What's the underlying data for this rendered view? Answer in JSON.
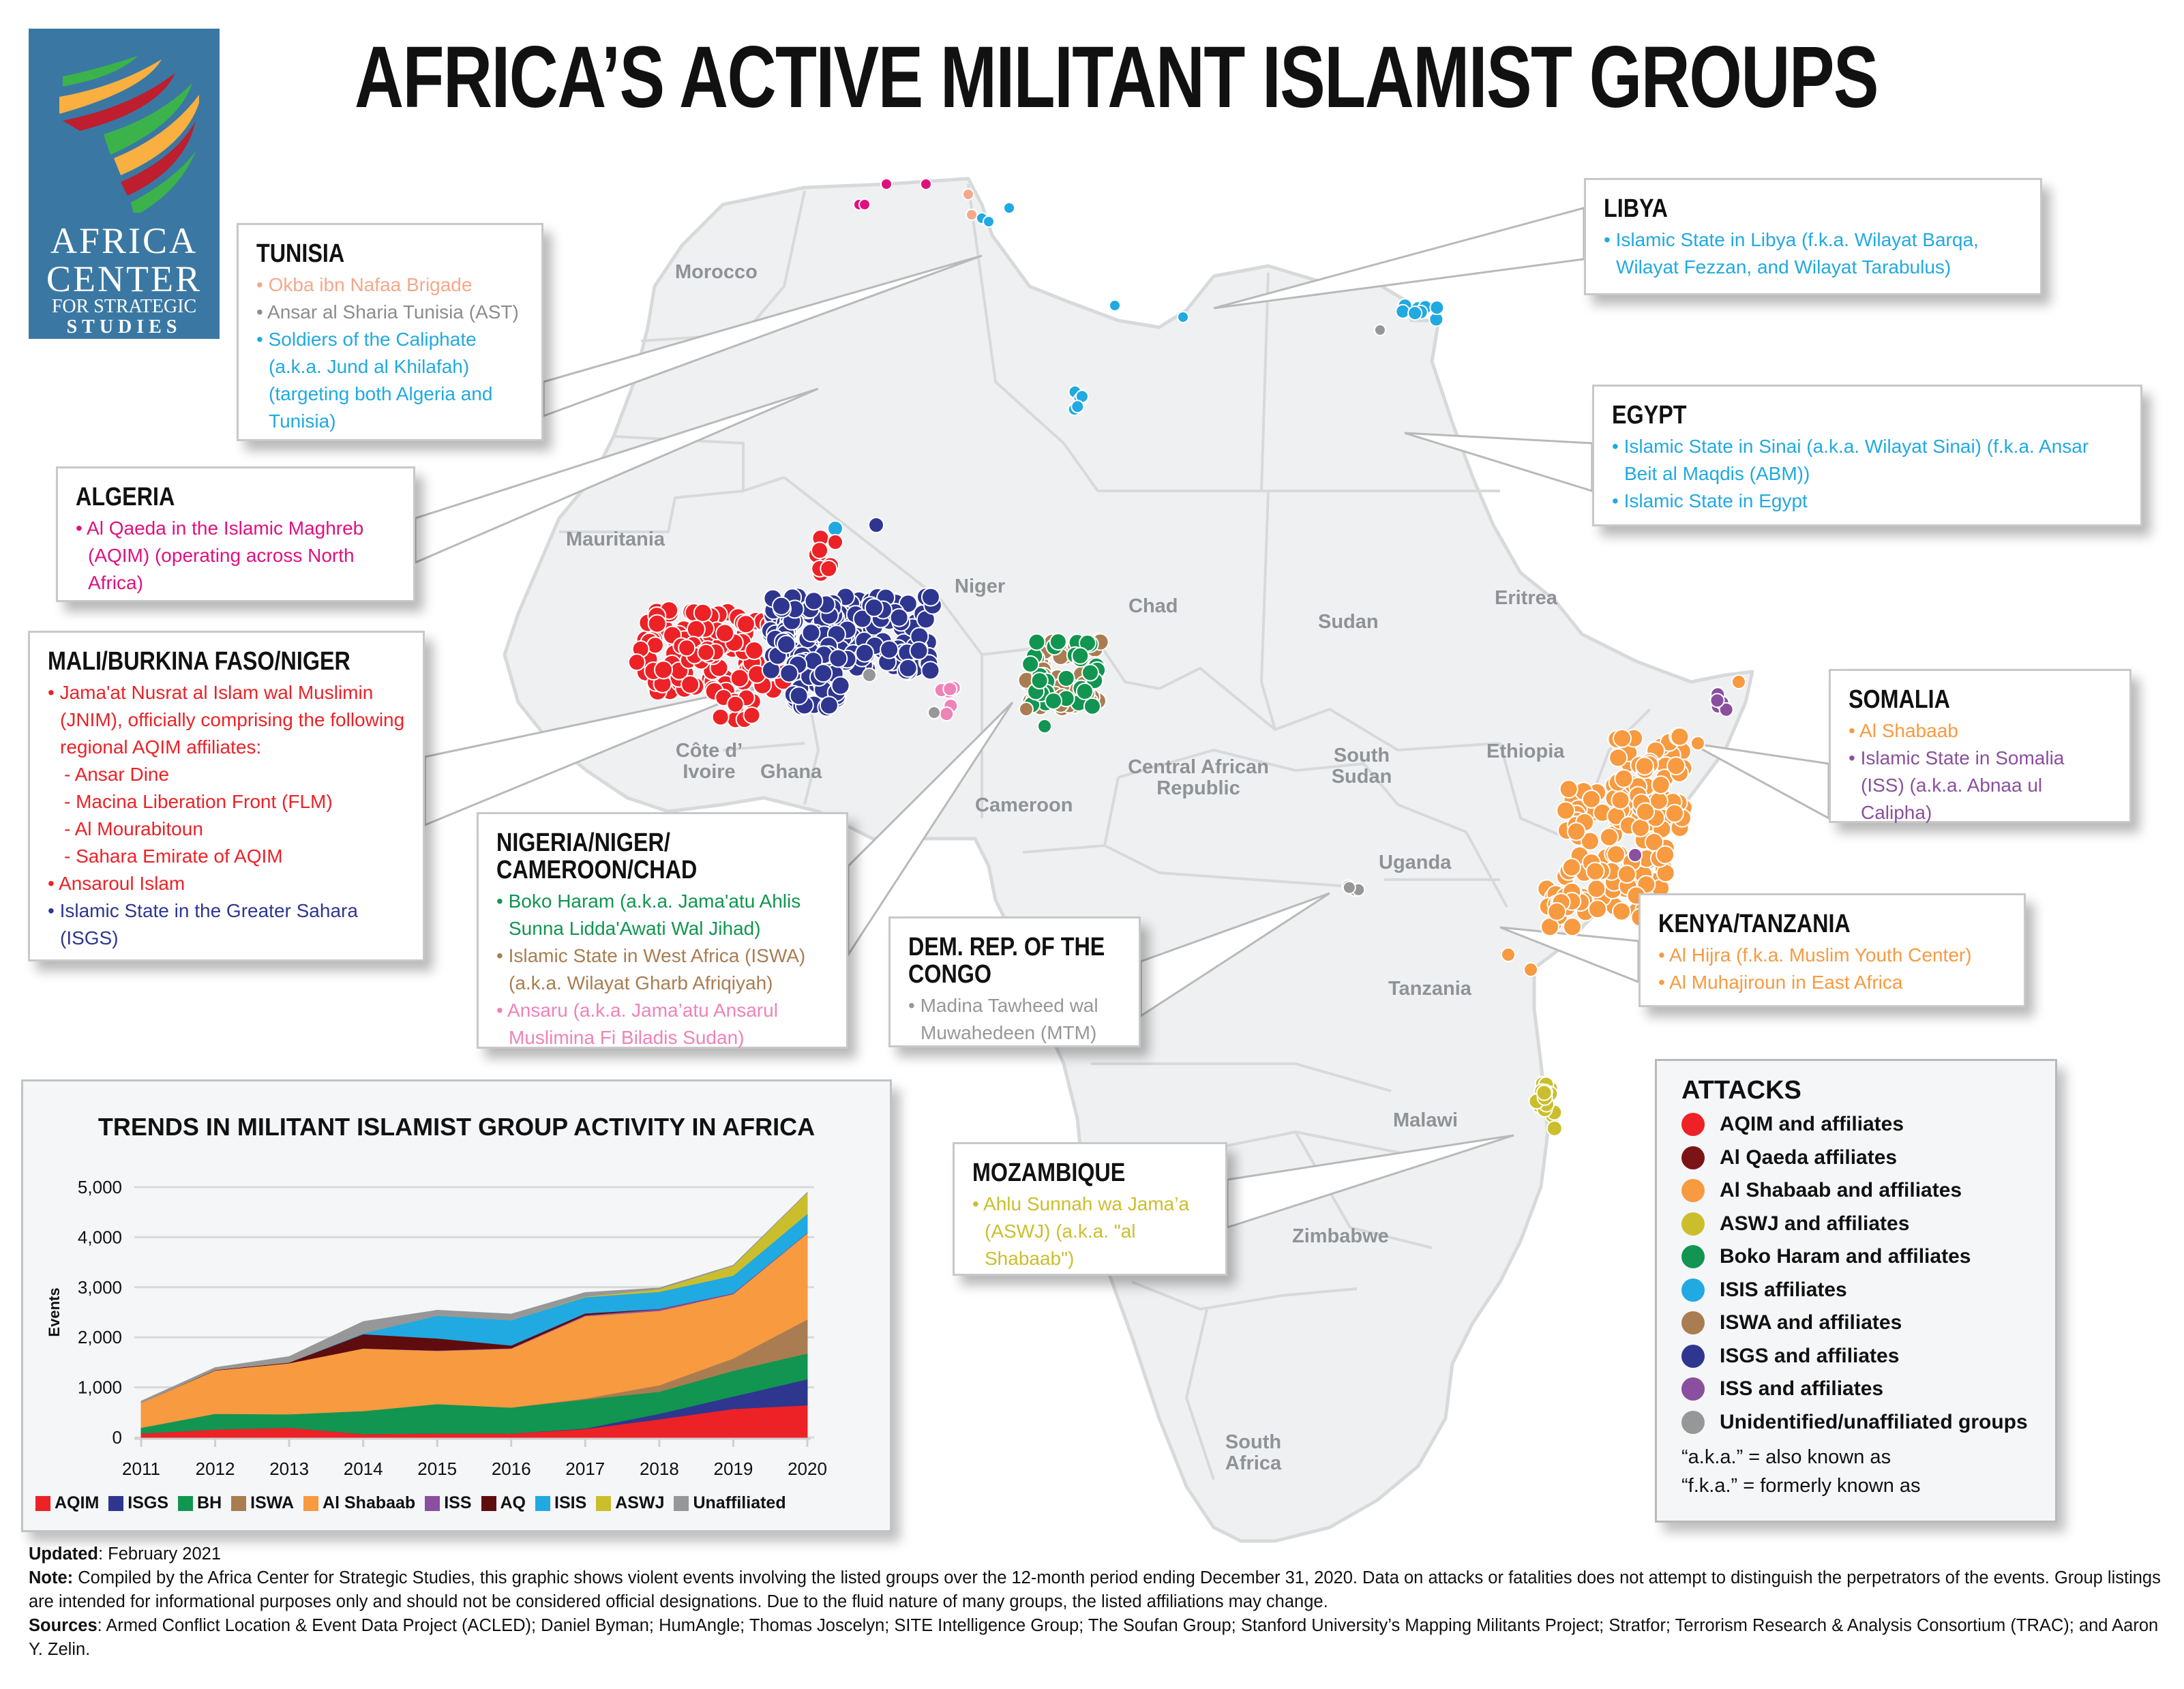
{
  "header": {
    "title": "AFRICA’S ACTIVE MILITANT ISLAMIST GROUPS",
    "logo": {
      "line1": "AFRICA",
      "line2": "CENTER",
      "line3": "FOR STRATEGIC",
      "line4": "STUDIES",
      "stripe_colors": [
        "#3bb34a",
        "#f9b040",
        "#be1e2d"
      ],
      "background": "#3a78a3"
    }
  },
  "colors": {
    "AQIM": "#ec2227",
    "AQ": "#6b1214",
    "AlShabaab": "#f79a40",
    "ASWJ": "#cbbe2d",
    "BH": "#119550",
    "ISIS": "#21a9e1",
    "ISWA": "#a97d51",
    "ISGS": "#2e3690",
    "ISS": "#8a4f9e",
    "Unaffiliated": "#979797",
    "OkbaBrigade": "#f5a88a",
    "AQIMAlgeria": "#e0107f",
    "Ansaru": "#ee83b8",
    "map_fill": "#eff0f1",
    "map_border": "#d8d9db"
  },
  "countries": [
    {
      "name": "Morocco"
    },
    {
      "name": "Mauritania"
    },
    {
      "name": "Niger"
    },
    {
      "name": "Chad"
    },
    {
      "name": "Sudan"
    },
    {
      "name": "Eritrea"
    },
    {
      "name": "Ethiopia"
    },
    {
      "name": "South Sudan"
    },
    {
      "name": "Central African Republic"
    },
    {
      "name": "Cameroon"
    },
    {
      "name": "Côte d’ Ivoire"
    },
    {
      "name": "Ghana"
    },
    {
      "name": "Uganda"
    },
    {
      "name": "Tanzania"
    },
    {
      "name": "Malawi"
    },
    {
      "name": "Zimbabwe"
    },
    {
      "name": "South Africa"
    }
  ],
  "callouts": {
    "tunisia": {
      "title": "TUNISIA",
      "items": [
        {
          "text": "Okba ibn Nafaa Brigade",
          "color": "#f5a88a"
        },
        {
          "text": "Ansar al Sharia Tunisia (AST)",
          "color": "#8c8c8c"
        },
        {
          "text": "Soldiers of the Caliphate (a.k.a. Jund al Khilafah) (targeting both Algeria and Tunisia)",
          "color": "#21a9e1"
        }
      ]
    },
    "libya": {
      "title": "LIBYA",
      "items": [
        {
          "text": "Islamic State in Libya (f.k.a. Wilayat Barqa, Wilayat Fezzan, and Wilayat Tarabulus)",
          "color": "#21a9e1"
        }
      ]
    },
    "egypt": {
      "title": "EGYPT",
      "items": [
        {
          "text": "Islamic State in Sinai (a.k.a. Wilayat Sinai) (f.k.a. Ansar Beit al Maqdis (ABM))",
          "color": "#21a9e1"
        },
        {
          "text": "Islamic State in Egypt",
          "color": "#21a9e1"
        }
      ]
    },
    "algeria": {
      "title": "ALGERIA",
      "items": [
        {
          "text": "Al Qaeda in the Islamic Maghreb (AQIM) (operating across North Africa)",
          "color": "#e0107f"
        }
      ]
    },
    "mali": {
      "title": "MALI/BURKINA FASO/NIGER",
      "items": [
        {
          "text": "Jama'at Nusrat al Islam wal Muslimin (JNIM), officially comprising the following regional AQIM affiliates:",
          "color": "#ec2227",
          "sub": false
        },
        {
          "text": "Ansar Dine",
          "color": "#ec2227",
          "sub": true
        },
        {
          "text": "Macina Liberation Front (FLM)",
          "color": "#ec2227",
          "sub": true
        },
        {
          "text": "Al Mourabitoun",
          "color": "#ec2227",
          "sub": true
        },
        {
          "text": "Sahara Emirate of AQIM",
          "color": "#ec2227",
          "sub": true
        },
        {
          "text": "Ansaroul Islam",
          "color": "#ec2227",
          "sub": false
        },
        {
          "text": "Islamic State in the Greater Sahara (ISGS)",
          "color": "#2e3690",
          "sub": false
        }
      ]
    },
    "nigeria": {
      "title": "NIGERIA/NIGER/ CAMEROON/CHAD",
      "items": [
        {
          "text": "Boko Haram (a.k.a. Jama'atu Ahlis Sunna Lidda'Awati Wal Jihad)",
          "color": "#119550"
        },
        {
          "text": "Islamic State in West Africa (ISWA) (a.k.a. Wilayat Gharb Afriqiyah)",
          "color": "#a97d51"
        },
        {
          "text": "Ansaru (a.k.a. Jama’atu Ansarul Muslimina Fi Biladis Sudan)",
          "color": "#ee83b8"
        }
      ]
    },
    "drc": {
      "title": "DEM. REP. OF THE CONGO",
      "items": [
        {
          "text": "Madina Tawheed wal Muwahedeen (MTM)",
          "color": "#979797"
        }
      ]
    },
    "somalia": {
      "title": "SOMALIA",
      "items": [
        {
          "text": "Al Shabaab",
          "color": "#f79a40"
        },
        {
          "text": "Islamic State in Somalia (ISS) (a.k.a. Abnaa ul Calipha)",
          "color": "#8a4f9e"
        }
      ]
    },
    "kenya": {
      "title": "KENYA/TANZANIA",
      "items": [
        {
          "text": "Al Hijra (f.k.a. Muslim Youth Center)",
          "color": "#f79a40"
        },
        {
          "text": "Al Muhajiroun in East Africa",
          "color": "#f79a40"
        }
      ]
    },
    "mozambique": {
      "title": "MOZAMBIQUE",
      "items": [
        {
          "text": "Ahlu Sunnah wa Jama’a (ASWJ) (a.k.a. \"al Shabaab\")",
          "color": "#cbbe2d"
        }
      ]
    }
  },
  "legend": {
    "title": "ATTACKS",
    "items": [
      {
        "label": "AQIM and affiliates",
        "color": "#ec2227"
      },
      {
        "label": "Al Qaeda affiliates",
        "color": "#7b1416"
      },
      {
        "label": "Al Shabaab and affiliates",
        "color": "#f79a40"
      },
      {
        "label": "ASWJ and affiliates",
        "color": "#cbbe2d"
      },
      {
        "label": "Boko Haram and affiliates",
        "color": "#119550"
      },
      {
        "label": "ISIS affiliates",
        "color": "#21a9e1"
      },
      {
        "label": "ISWA and affiliates",
        "color": "#a97d51"
      },
      {
        "label": "ISGS and affiliates",
        "color": "#2e3690"
      },
      {
        "label": "ISS and affiliates",
        "color": "#8a4f9e"
      },
      {
        "label": "Unidentified/unaffiliated groups",
        "color": "#979797"
      }
    ],
    "note1": "“a.k.a.” = also known as",
    "note2": "“f.k.a.” = formerly known as"
  },
  "chart_data": {
    "type": "area",
    "stacked": true,
    "title": "TRENDS IN MILITANT ISLAMIST GROUP ACTIVITY IN AFRICA",
    "xlabel": "",
    "ylabel": "Events",
    "x": [
      "2011",
      "2012",
      "2013",
      "2014",
      "2015",
      "2016",
      "2017",
      "2018",
      "2019",
      "2020"
    ],
    "ylim": [
      0,
      5000
    ],
    "yticks": [
      0,
      1000,
      2000,
      3000,
      4000,
      5000
    ],
    "ytick_labels": [
      "0",
      "1,000",
      "2,000",
      "3,000",
      "4,000",
      "5,000"
    ],
    "grid": true,
    "legend_position": "bottom",
    "series": [
      {
        "name": "AQIM",
        "color": "#ec2227",
        "values": [
          80,
          160,
          195,
          70,
          80,
          80,
          170,
          365,
          570,
          645
        ]
      },
      {
        "name": "ISGS",
        "color": "#2e3690",
        "values": [
          0,
          0,
          0,
          0,
          0,
          0,
          10,
          110,
          250,
          520
        ]
      },
      {
        "name": "BH",
        "color": "#119550",
        "values": [
          115,
          315,
          270,
          460,
          590,
          520,
          580,
          440,
          515,
          515
        ]
      },
      {
        "name": "ISWA",
        "color": "#a97d51",
        "values": [
          0,
          0,
          0,
          0,
          0,
          0,
          20,
          130,
          245,
          680
        ]
      },
      {
        "name": "Al Shabaab",
        "color": "#f79a40",
        "values": [
          500,
          865,
          1020,
          1250,
          1060,
          1175,
          1645,
          1485,
          1285,
          1720
        ]
      },
      {
        "name": "ISS",
        "color": "#8a4f9e",
        "values": [
          0,
          0,
          0,
          0,
          10,
          10,
          20,
          35,
          20,
          10
        ]
      },
      {
        "name": "AQ",
        "color": "#5e0c0e",
        "values": [
          0,
          10,
          15,
          285,
          240,
          55,
          35,
          5,
          0,
          0
        ]
      },
      {
        "name": "ISIS",
        "color": "#21a9e1",
        "values": [
          0,
          0,
          0,
          20,
          455,
          505,
          325,
          340,
          350,
          380
        ]
      },
      {
        "name": "ASWJ",
        "color": "#cbbe2d",
        "values": [
          0,
          0,
          0,
          0,
          0,
          0,
          10,
          55,
          195,
          425
        ]
      },
      {
        "name": "Unaffiliated",
        "color": "#979797",
        "values": [
          30,
          45,
          115,
          230,
          105,
          120,
          80,
          20,
          10,
          0
        ]
      }
    ]
  },
  "footer": {
    "updated_label": "Updated",
    "updated_value": ": February 2021",
    "note_label": "Note:",
    "note_text": " Compiled by the Africa Center for Strategic Studies, this graphic shows violent events involving the listed groups over the 12-month period ending December 31, 2020. Data on attacks or fatalities does not attempt to distinguish the perpetrators of the events. Group listings are intended for informational purposes only and should not be considered official designations. Due to the fluid nature of many groups, the listed affiliations may change.",
    "sources_label": "Sources",
    "sources_text": ": Armed Conflict Location & Event Data Project (ACLED); Daniel Byman; HumAngle; Thomas Joscelyn; SITE Intelligence Group; The Soufan Group; Stanford University’s Mapping Militants Project; Stratfor; Terrorism Research & Analysis Consortium (TRAC); and Aaron Y. Zelin."
  }
}
